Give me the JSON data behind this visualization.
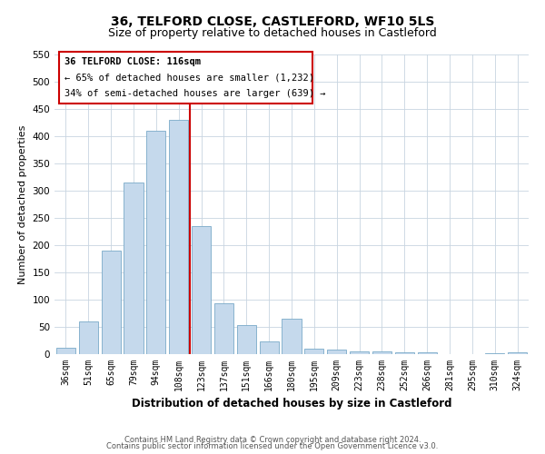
{
  "title": "36, TELFORD CLOSE, CASTLEFORD, WF10 5LS",
  "subtitle": "Size of property relative to detached houses in Castleford",
  "xlabel": "Distribution of detached houses by size in Castleford",
  "ylabel": "Number of detached properties",
  "categories": [
    "36sqm",
    "51sqm",
    "65sqm",
    "79sqm",
    "94sqm",
    "108sqm",
    "123sqm",
    "137sqm",
    "151sqm",
    "166sqm",
    "180sqm",
    "195sqm",
    "209sqm",
    "223sqm",
    "238sqm",
    "252sqm",
    "266sqm",
    "281sqm",
    "295sqm",
    "310sqm",
    "324sqm"
  ],
  "values": [
    12,
    60,
    190,
    315,
    410,
    430,
    235,
    93,
    53,
    24,
    65,
    10,
    9,
    5,
    5,
    4,
    4,
    0,
    0,
    2,
    3
  ],
  "bar_color": "#c5d9ec",
  "bar_edge_color": "#7aaac8",
  "vline_x": 6,
  "vline_color": "#cc0000",
  "ylim": [
    0,
    550
  ],
  "yticks": [
    0,
    50,
    100,
    150,
    200,
    250,
    300,
    350,
    400,
    450,
    500,
    550
  ],
  "annotation_title": "36 TELFORD CLOSE: 116sqm",
  "annotation_line1": "← 65% of detached houses are smaller (1,232)",
  "annotation_line2": "34% of semi-detached houses are larger (639) →",
  "annotation_box_color": "#ffffff",
  "annotation_box_edge": "#cc0000",
  "footnote1": "Contains HM Land Registry data © Crown copyright and database right 2024.",
  "footnote2": "Contains public sector information licensed under the Open Government Licence v3.0.",
  "bg_color": "#ffffff",
  "grid_color": "#c8d4e0",
  "title_fontsize": 10,
  "subtitle_fontsize": 9,
  "axis_label_fontsize": 8.5,
  "tick_fontsize": 7,
  "ylabel_fontsize": 8
}
